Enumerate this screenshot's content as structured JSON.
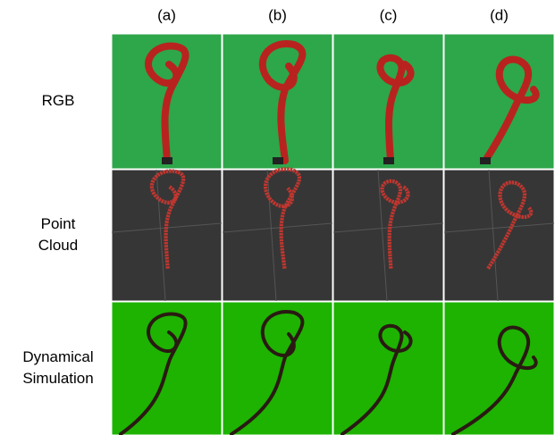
{
  "columns": [
    "(a)",
    "(b)",
    "(c)",
    "(d)"
  ],
  "rows": [
    [
      "RGB"
    ],
    [
      "Point",
      "Cloud"
    ],
    [
      "Dynamical",
      "Simulation"
    ]
  ]
}
